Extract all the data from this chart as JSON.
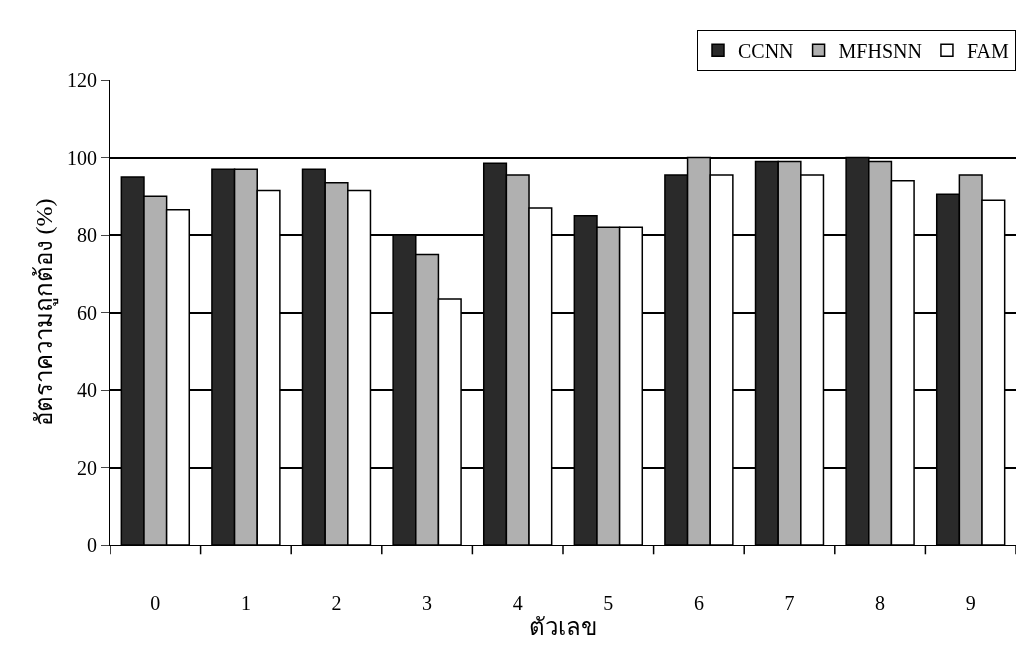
{
  "chart_data": {
    "type": "bar",
    "xlabel": "ตัวเลข",
    "ylabel": "อัตราความถูกต้อง (%)",
    "categories": [
      "0",
      "1",
      "2",
      "3",
      "4",
      "5",
      "6",
      "7",
      "8",
      "9"
    ],
    "series": [
      {
        "name": "CCNN",
        "color": "#2a2a2a",
        "values": [
          95,
          97,
          97,
          80,
          98.5,
          85,
          95.5,
          99,
          100,
          90.5
        ]
      },
      {
        "name": "MFHSNN",
        "color": "#b0b0b0",
        "values": [
          90,
          97,
          93.5,
          75,
          95.5,
          82,
          100,
          99,
          99,
          95.5
        ]
      },
      {
        "name": "FAM",
        "color": "#ffffff",
        "values": [
          86.5,
          91.5,
          91.5,
          63.5,
          87,
          82,
          95.5,
          95.5,
          94,
          89
        ]
      }
    ],
    "ylim": [
      0,
      120
    ],
    "yticks": [
      0,
      20,
      40,
      60,
      80,
      100,
      120
    ],
    "grid": "y",
    "legend": "top right"
  }
}
